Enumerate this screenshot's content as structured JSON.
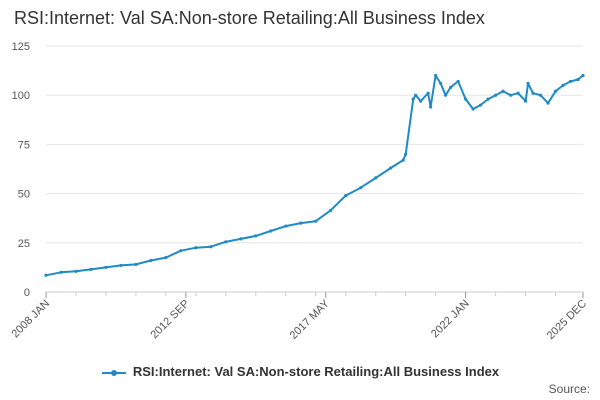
{
  "header": {
    "title": "RSI:Internet: Val SA:Non-store Retailing:All Business Index"
  },
  "footer": {
    "source_label": "Source:"
  },
  "colors": {
    "series": "#1f8bc4",
    "grid": "#e6e6e6",
    "axis": "#cccccc"
  },
  "chart_data": {
    "type": "line",
    "title": "RSI:Internet: Val SA:Non-store Retailing:All Business Index",
    "xlabel": "",
    "ylabel": "",
    "ylim": [
      0,
      125
    ],
    "yticks": [
      0,
      25,
      50,
      75,
      100,
      125
    ],
    "xlim": [
      "2008-01",
      "2025-12"
    ],
    "xticks": [
      {
        "value": "2008-01",
        "label": "2008 JAN"
      },
      {
        "value": "2012-09",
        "label": "2012 SEP"
      },
      {
        "value": "2017-05",
        "label": "2017 MAY"
      },
      {
        "value": "2022-01",
        "label": "2022 JAN"
      },
      {
        "value": "2025-12",
        "label": "2025 DEC"
      }
    ],
    "grid": true,
    "legend": "bottom",
    "series": [
      {
        "name": "RSI:Internet: Val SA:Non-store Retailing:All Business Index",
        "x": [
          "2008-01",
          "2008-07",
          "2009-01",
          "2009-07",
          "2010-01",
          "2010-07",
          "2011-01",
          "2011-07",
          "2012-01",
          "2012-07",
          "2013-01",
          "2013-07",
          "2014-01",
          "2014-07",
          "2015-01",
          "2015-07",
          "2016-01",
          "2016-07",
          "2017-01",
          "2017-07",
          "2018-01",
          "2018-07",
          "2019-01",
          "2019-07",
          "2019-12",
          "2020-01",
          "2020-04",
          "2020-05",
          "2020-07",
          "2020-10",
          "2020-11",
          "2021-01",
          "2021-03",
          "2021-05",
          "2021-07",
          "2021-10",
          "2022-01",
          "2022-04",
          "2022-07",
          "2022-10",
          "2023-01",
          "2023-04",
          "2023-07",
          "2023-10",
          "2024-01",
          "2024-02",
          "2024-04",
          "2024-07",
          "2024-10",
          "2025-01",
          "2025-04",
          "2025-07",
          "2025-10",
          "2025-12"
        ],
        "values": [
          8.5,
          10,
          10.5,
          11.5,
          12.5,
          13.5,
          14,
          16,
          17.5,
          21,
          22.5,
          23,
          25.5,
          27,
          28.5,
          31,
          33.5,
          35,
          36,
          41.5,
          49,
          53,
          58,
          63,
          67,
          70,
          98,
          100,
          97,
          101,
          94,
          110,
          106,
          100,
          104,
          107,
          98,
          93,
          95,
          98,
          100,
          102,
          100,
          101,
          97,
          106,
          101,
          100,
          96,
          102,
          105,
          107,
          108,
          110
        ]
      }
    ]
  }
}
